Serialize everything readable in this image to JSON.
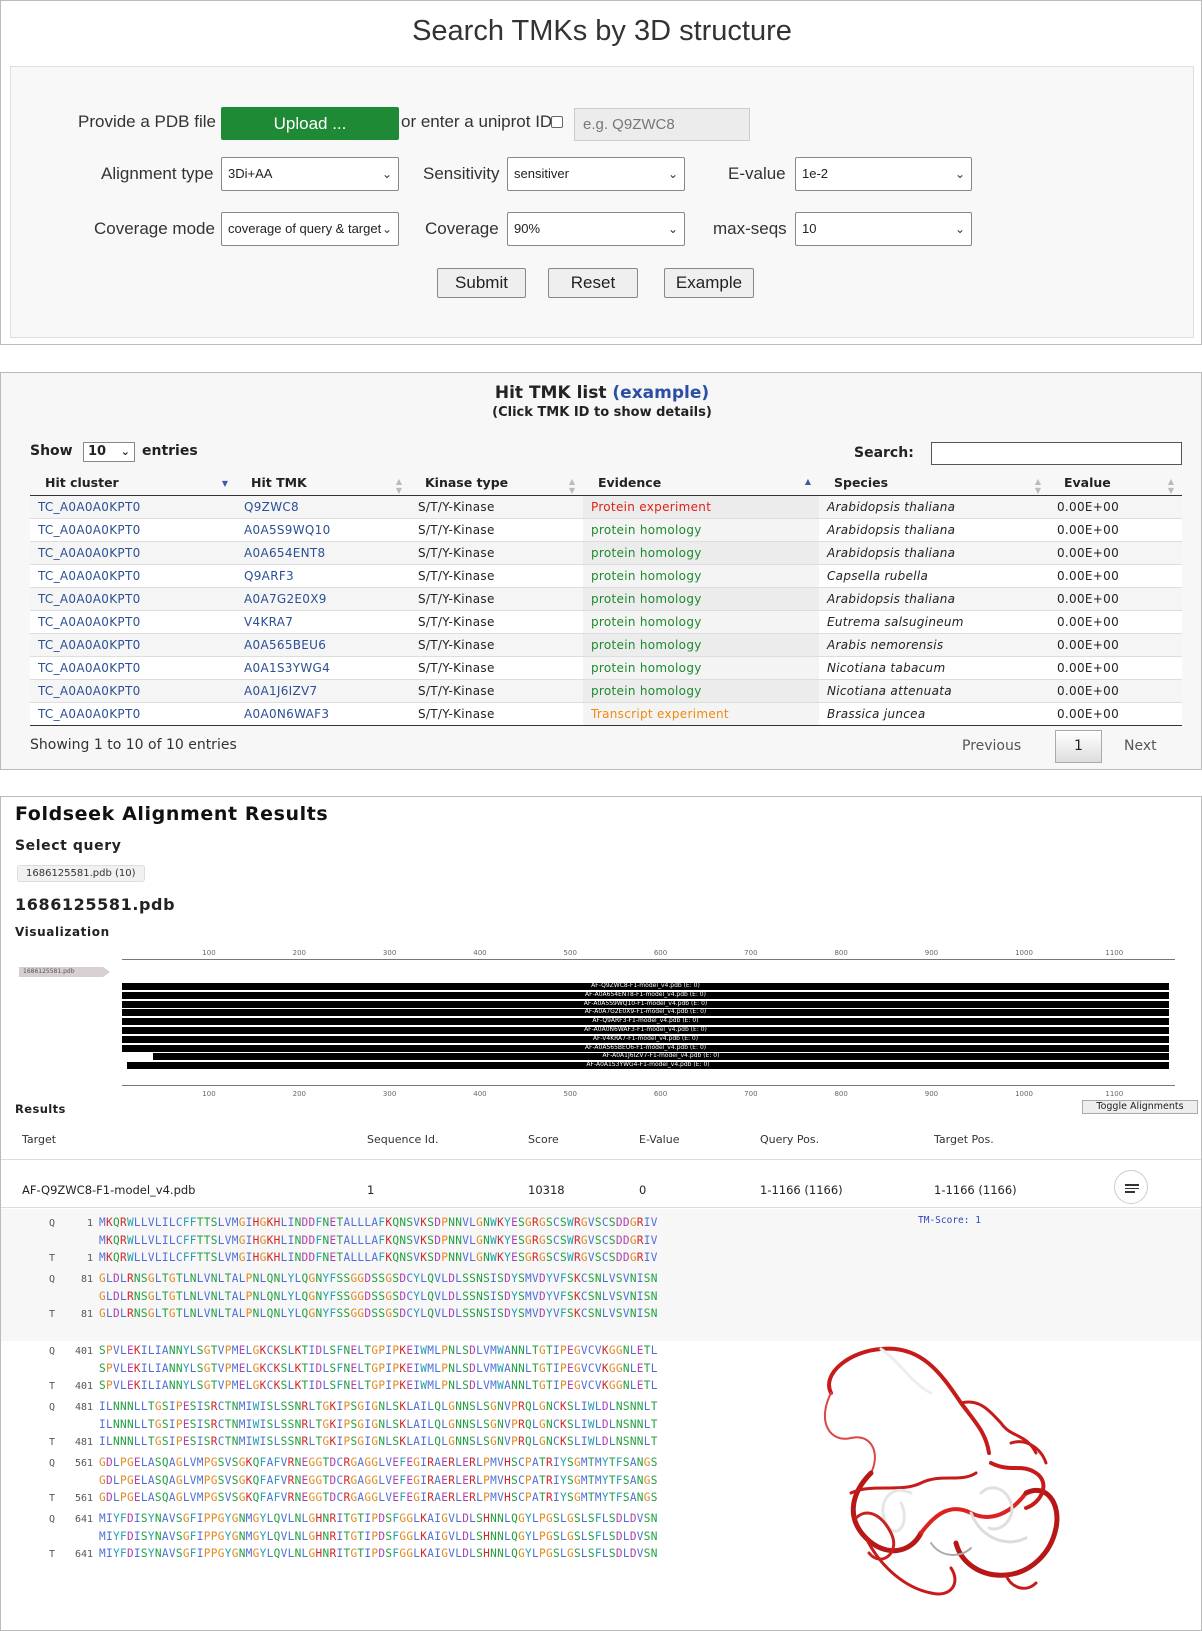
{
  "search": {
    "title": "Search TMKs by 3D structure",
    "pdb_label": "Provide a PDB file",
    "upload_label": "Upload ...",
    "uniprot_label": "or enter a uniprot ID",
    "uniprot_placeholder": "e.g. Q9ZWC8",
    "alignment_type_label": "Alignment type",
    "alignment_type_value": "3Di+AA",
    "sensitivity_label": "Sensitivity",
    "sensitivity_value": "sensitiver",
    "evalue_label": "E-value",
    "evalue_value": "1e-2",
    "coverage_mode_label": "Coverage mode",
    "coverage_mode_value": "coverage of query & target",
    "coverage_label": "Coverage",
    "coverage_value": "90%",
    "maxseqs_label": "max-seqs",
    "maxseqs_value": "10",
    "submit": "Submit",
    "reset": "Reset",
    "example": "Example"
  },
  "hitlist": {
    "title": "Hit TMK list",
    "title_link": "(example)",
    "subtitle": "(Click TMK ID to show details)",
    "show_label": "Show",
    "show_value": "10",
    "entries_label": "entries",
    "search_label": "Search:",
    "columns": [
      "Hit cluster",
      "Hit TMK",
      "Kinase type",
      "Evidence",
      "Species",
      "Evalue"
    ],
    "rows": [
      {
        "cluster": "TC_A0A0A0KPT0",
        "tmk": "Q9ZWC8",
        "kinase": "S/T/Y-Kinase",
        "evidence": "Protein experiment",
        "ev_class": "ev-red",
        "species": "Arabidopsis thaliana",
        "evalue": "0.00E+00"
      },
      {
        "cluster": "TC_A0A0A0KPT0",
        "tmk": "A0A5S9WQ10",
        "kinase": "S/T/Y-Kinase",
        "evidence": "protein homology",
        "ev_class": "ev-green",
        "species": "Arabidopsis thaliana",
        "evalue": "0.00E+00"
      },
      {
        "cluster": "TC_A0A0A0KPT0",
        "tmk": "A0A654ENT8",
        "kinase": "S/T/Y-Kinase",
        "evidence": "protein homology",
        "ev_class": "ev-green",
        "species": "Arabidopsis thaliana",
        "evalue": "0.00E+00"
      },
      {
        "cluster": "TC_A0A0A0KPT0",
        "tmk": "Q9ARF3",
        "kinase": "S/T/Y-Kinase",
        "evidence": "protein homology",
        "ev_class": "ev-green",
        "species": "Capsella rubella",
        "evalue": "0.00E+00"
      },
      {
        "cluster": "TC_A0A0A0KPT0",
        "tmk": "A0A7G2E0X9",
        "kinase": "S/T/Y-Kinase",
        "evidence": "protein homology",
        "ev_class": "ev-green",
        "species": "Arabidopsis thaliana",
        "evalue": "0.00E+00"
      },
      {
        "cluster": "TC_A0A0A0KPT0",
        "tmk": "V4KRA7",
        "kinase": "S/T/Y-Kinase",
        "evidence": "protein homology",
        "ev_class": "ev-green",
        "species": "Eutrema salsugineum",
        "evalue": "0.00E+00"
      },
      {
        "cluster": "TC_A0A0A0KPT0",
        "tmk": "A0A565BEU6",
        "kinase": "S/T/Y-Kinase",
        "evidence": "protein homology",
        "ev_class": "ev-green",
        "species": "Arabis nemorensis",
        "evalue": "0.00E+00"
      },
      {
        "cluster": "TC_A0A0A0KPT0",
        "tmk": "A0A1S3YWG4",
        "kinase": "S/T/Y-Kinase",
        "evidence": "protein homology",
        "ev_class": "ev-green",
        "species": "Nicotiana tabacum",
        "evalue": "0.00E+00"
      },
      {
        "cluster": "TC_A0A0A0KPT0",
        "tmk": "A0A1J6IZV7",
        "kinase": "S/T/Y-Kinase",
        "evidence": "protein homology",
        "ev_class": "ev-green",
        "species": "Nicotiana attenuata",
        "evalue": "0.00E+00"
      },
      {
        "cluster": "TC_A0A0A0KPT0",
        "tmk": "A0A0N6WAF3",
        "kinase": "S/T/Y-Kinase",
        "evidence": "Transcript experiment",
        "ev_class": "ev-orange",
        "species": "Brassica juncea",
        "evalue": "0.00E+00"
      }
    ],
    "info": "Showing 1 to 10 of 10 entries",
    "previous": "Previous",
    "page": "1",
    "next": "Next"
  },
  "foldseek": {
    "title": "Foldseek Alignment Results",
    "select_query": "Select query",
    "query_chip": "1686125581.pdb (10)",
    "query_name": "1686125581.pdb",
    "visualization": "Visualization",
    "query_track_label": "1686125581.pdb",
    "ticks": [
      "100",
      "200",
      "300",
      "400",
      "500",
      "600",
      "700",
      "800",
      "900",
      "1000",
      "1100"
    ],
    "hits": [
      "AF-Q9ZWC8-F1-model_v4.pdb (E: 0)",
      "AF-A0A654ENT8-F1-model_v4.pdb (E: 0)",
      "AF-A0A5S9WQ10-F1-model_v4.pdb (E: 0)",
      "AF-A0A7G2E0X9-F1-model_v4.pdb (E: 0)",
      "AF-Q9ARF3-F1-model_v4.pdb (E: 0)",
      "AF-A0A0N6WAF3-F1-model_v4.pdb (E: 0)",
      "AF-V4KRA7-F1-model_v4.pdb (E: 0)",
      "AF-A0A565BEU6-F1-model_v4.pdb (E: 0)",
      "AF-A0A1J6IZV7-F1-model_v4.pdb (E: 0)",
      "AF-A0A1S3YWG4-F1-model_v4.pdb (E: 0)"
    ],
    "results_label": "Results",
    "toggle_label": "Toggle Alignments",
    "result_columns": [
      "Target",
      "Sequence Id.",
      "Score",
      "E-Value",
      "Query Pos.",
      "Target Pos."
    ],
    "result_row": {
      "target": "AF-Q9ZWC8-F1-model_v4.pdb",
      "seqid": "1",
      "score": "10318",
      "evalue": "0",
      "qpos": "1-1166 (1166)",
      "tpos": "1-1166 (1166)"
    },
    "tm_score": "TM-Score: 1",
    "alignments": [
      {
        "start": "1",
        "seq": "MKQRWLLVLILCFFTTSLVMGIHGKHLINDDFNETALLLAFKQNSVKSDPNNVLGNWKYESGRGSCSWRGVSCSDDGRIV"
      },
      {
        "start": "81",
        "seq": "GLDLRNSGLTGTLNLVNLTALPNLQNLYLQGNYFSSGGDSSGSDCYLQVLDLSSNSISDYSMVDYVFSKCSNLVSVNISN"
      },
      {
        "start": "401",
        "seq": "SPVLEKILIANNYLSGTVPMELGKCKSLKTIDLSFNELTGPIPKEIWMLPNLSDLVMWANNLTGTIPEGVCVKGGNLETL"
      },
      {
        "start": "481",
        "seq": "ILNNNLLTGSIPESISRCTNMIWISLSSNRLTGKIPSGIGNLSKLAILQLGNNSLSGNVPRQLGNCKSLIWLDLNSNNLT"
      },
      {
        "start": "561",
        "seq": "GDLPGELASQAGLVMPGSVSGKQFAFVRNEGGTDCRGAGGLVEFEGIRAERLERLPMVHSCPATRIYSGMTMYTFSANGS"
      },
      {
        "start": "641",
        "seq": "MIYFDISYNAVSGFIPPGYGNMGYLQVLNLGHNRITGTIPDSFGGLKAIGVLDLSHNNLQGYLPGSLGSLSFLSDLDVSN"
      }
    ],
    "residue_colors": {
      "hydrophobic": "#4f6fd8",
      "polar": "#20a040",
      "positive": "#d02828",
      "negative": "#b040b0",
      "special": "#e08a20",
      "aromatic": "#20a0b0"
    }
  }
}
